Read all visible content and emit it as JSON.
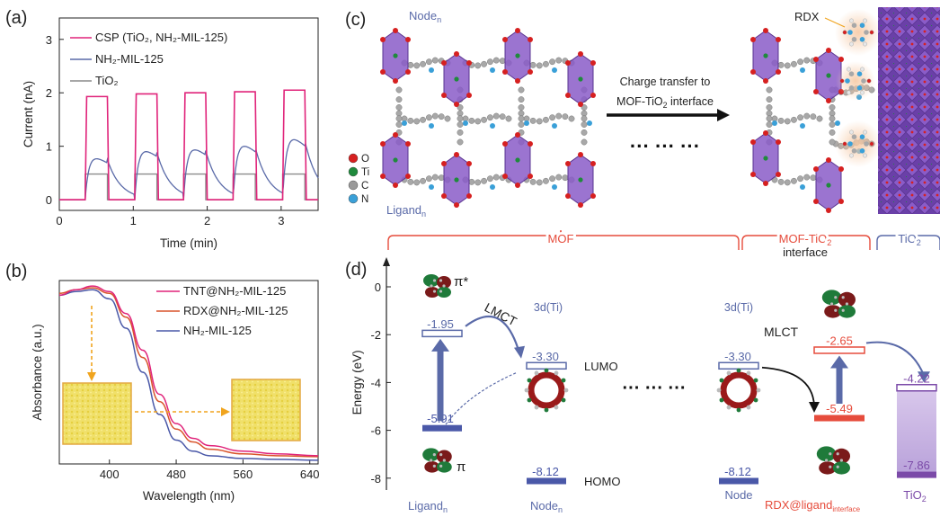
{
  "colors": {
    "magenta": "#e0237a",
    "blue_gray": "#5a6aa8",
    "gray": "#8a8a8a",
    "orange": "#d9542b",
    "slate": "#4a58a8",
    "red_label": "#e64c3c",
    "purple": "#7b4aa8",
    "node_violet": "#8a5cc8",
    "yellow_powder": "#f0e06a"
  },
  "panel_a": {
    "label": "(a)",
    "legend": [
      "CSP (TiO",
      "2",
      ", NH",
      "2",
      "-MIL-125)",
      "NH",
      "2",
      "-MIL-125",
      "TiO",
      "2"
    ],
    "legend_items": [
      {
        "text": "CSP (TiO₂, NH₂-MIL-125)",
        "color": "#e0237a"
      },
      {
        "text": "NH₂-MIL-125",
        "color": "#5a6aa8"
      },
      {
        "text": "TiO₂",
        "color": "#8a8a8a"
      }
    ]
  },
  "panel_b": {
    "label": "(b)",
    "legend_items": [
      {
        "text": "TNT@NH₂-MIL-125",
        "color": "#e0237a"
      },
      {
        "text": "RDX@NH₂-MIL-125",
        "color": "#d9542b"
      },
      {
        "text": "NH₂-MIL-125",
        "color": "#4a58a8"
      }
    ]
  },
  "panel_c": {
    "label": "(c)",
    "node_label": "Node",
    "node_sub": "n",
    "ligand_label": "Ligand",
    "ligand_sub": "n",
    "rdx_label": "RDX",
    "arrow_text_1": "Charge transfer to",
    "arrow_text_2": "MOF-TiO",
    "arrow_text_2_sub": "2",
    "arrow_text_2_end": " interface",
    "dots": "···  ···  ···",
    "atoms": [
      {
        "symbol": "O",
        "color": "#d62020"
      },
      {
        "symbol": "Ti",
        "color": "#1f8a3c"
      },
      {
        "symbol": "C",
        "color": "#9a9a9a"
      },
      {
        "symbol": "N",
        "color": "#3aa0d8"
      }
    ],
    "bracket_mof": "MOF",
    "bracket_interface_1": "MOF-TiO",
    "bracket_interface_sub": "2",
    "bracket_interface_2": "interface",
    "bracket_tio2": "TiO",
    "bracket_tio2_sub": "2"
  },
  "panel_d": {
    "label": "(d)",
    "ylabel": "Energy (eV)",
    "yticks": [
      "0",
      "-2",
      "-4",
      "-6",
      "-8"
    ],
    "pi_star": "π*",
    "pi": "π",
    "lmct": "LMCT",
    "mlct": "MLCT",
    "three_d_ti": "3d(Ti)",
    "lumo": "LUMO",
    "homo": "HOMO",
    "dots": "···  ···  ···",
    "ligand_label": "Ligand",
    "ligand_sub": "n",
    "node_label": "Node",
    "node_sub": "n",
    "node2_label": "Node",
    "rdx_label": "RDX@ligand",
    "rdx_sub": "interface",
    "tio2_label": "TiO",
    "tio2_sub": "2",
    "levels": {
      "ligand_lumo": "-1.95",
      "ligand_homo": "-5.91",
      "node_lumo": "-3.30",
      "node_homo": "-8.12",
      "node2_lumo": "-3.30",
      "node2_homo": "-8.12",
      "rdx_lumo": "-2.65",
      "rdx_homo": "-5.49",
      "tio2_cb": "-4.22",
      "tio2_vb": "-7.86"
    }
  },
  "chart_data": [
    {
      "type": "line",
      "panel": "(a)",
      "xlabel": "Time (min)",
      "ylabel": "Current (nA)",
      "xlim": [
        0,
        3.5
      ],
      "ylim": [
        -0.2,
        3.4
      ],
      "xticks": [
        0,
        1,
        2,
        3
      ],
      "yticks": [
        0,
        1,
        2,
        3
      ],
      "series": [
        {
          "name": "CSP (TiO₂, NH₂-MIL-125)",
          "color": "#e0237a",
          "pulses": [
            [
              0.35,
              0.65,
              1.93
            ],
            [
              1.02,
              1.32,
              1.98
            ],
            [
              1.68,
              1.98,
              2.0
            ],
            [
              2.35,
              2.65,
              2.02
            ],
            [
              3.02,
              3.32,
              2.05
            ]
          ],
          "baseline": 0.0
        },
        {
          "name": "NH₂-MIL-125",
          "color": "#5a6aa8",
          "peaks": [
            [
              0.48,
              0.92
            ],
            [
              1.15,
              1.08
            ],
            [
              1.82,
              1.12
            ],
            [
              2.48,
              1.2
            ],
            [
              3.25,
              1.35
            ]
          ],
          "baseline": 0.0
        },
        {
          "name": "TiO₂",
          "color": "#8a8a8a",
          "pulses": [
            [
              0.35,
              0.65,
              0.48
            ],
            [
              1.02,
              1.32,
              0.48
            ],
            [
              1.68,
              1.98,
              0.48
            ],
            [
              2.35,
              2.65,
              0.48
            ],
            [
              3.02,
              3.32,
              0.48
            ]
          ],
          "baseline": 0.0
        }
      ]
    },
    {
      "type": "line",
      "panel": "(b)",
      "xlabel": "Wavelength (nm)",
      "ylabel": "Absorbance (a.u.)",
      "xlim": [
        340,
        650
      ],
      "ylim": [
        0,
        1
      ],
      "xticks": [
        400,
        480,
        560,
        640
      ],
      "series": [
        {
          "name": "TNT@NH₂-MIL-125",
          "color": "#e0237a",
          "x": [
            340,
            360,
            380,
            400,
            420,
            440,
            460,
            480,
            500,
            520,
            560,
            600,
            650
          ],
          "y": [
            0.92,
            0.95,
            0.97,
            0.94,
            0.82,
            0.62,
            0.38,
            0.22,
            0.14,
            0.1,
            0.07,
            0.055,
            0.045
          ]
        },
        {
          "name": "RDX@NH₂-MIL-125",
          "color": "#d9542b",
          "x": [
            340,
            360,
            380,
            400,
            420,
            440,
            460,
            480,
            500,
            520,
            560,
            600,
            650
          ],
          "y": [
            0.93,
            0.95,
            0.96,
            0.93,
            0.8,
            0.58,
            0.34,
            0.19,
            0.12,
            0.08,
            0.055,
            0.045,
            0.04
          ]
        },
        {
          "name": "NH₂-MIL-125",
          "color": "#4a58a8",
          "x": [
            340,
            360,
            380,
            400,
            420,
            440,
            460,
            480,
            500,
            520,
            560,
            600,
            650
          ],
          "y": [
            0.92,
            0.94,
            0.95,
            0.9,
            0.74,
            0.5,
            0.27,
            0.13,
            0.07,
            0.045,
            0.03,
            0.025,
            0.02
          ]
        }
      ]
    }
  ]
}
